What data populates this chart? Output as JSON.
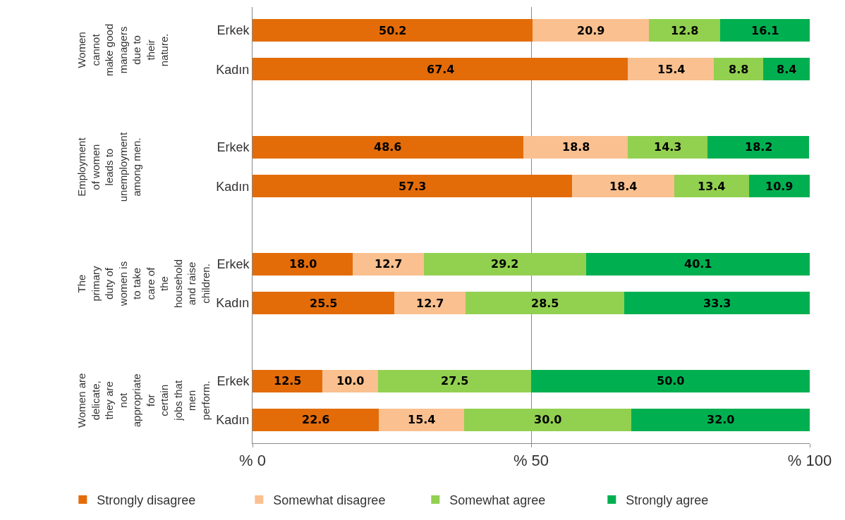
{
  "chart_data": {
    "type": "bar",
    "orientation": "horizontal",
    "stacked": true,
    "categories": [
      "Erkek",
      "Kadın",
      "Erkek",
      "Kadın",
      "Erkek",
      "Kadın",
      "Erkek",
      "Kadın"
    ],
    "series": [
      {
        "name": "Strongly disagree",
        "color": "#e36c09",
        "values": [
          50.2,
          67.4,
          48.6,
          57.3,
          18.0,
          25.5,
          12.5,
          22.6
        ],
        "value_labels": [
          "50.2",
          "67.4",
          "48.6",
          "57.3",
          "18.0",
          "25.5",
          "12.5",
          "22.6"
        ]
      },
      {
        "name": "Somewhat disagree",
        "color": "#fac08f",
        "values": [
          20.9,
          15.4,
          18.8,
          18.4,
          12.7,
          12.7,
          10.0,
          15.4
        ],
        "value_labels": [
          "20.9",
          "15.4",
          "18.8",
          "18.4",
          "12.7",
          "12.7",
          "10.0",
          "15.4"
        ]
      },
      {
        "name": "Somewhat agree",
        "color": "#92d050",
        "values": [
          12.8,
          8.8,
          14.3,
          13.4,
          29.2,
          28.5,
          27.5,
          30.0
        ],
        "value_labels": [
          "12.8",
          "8.8",
          "14.3",
          "13.4",
          "29.2",
          "28.5",
          "27.5",
          "30.0"
        ]
      },
      {
        "name": "Strongly agree",
        "color": "#00b050",
        "values": [
          16.1,
          8.4,
          18.2,
          10.9,
          40.1,
          33.3,
          50.0,
          32.0
        ],
        "value_labels": [
          "16.1",
          "8.4",
          "18.2",
          "10.9",
          "40.1",
          "33.3",
          "50.0",
          "32.0"
        ]
      }
    ],
    "annotations": [
      "Women cannot make good managers due to their nature.",
      "Employment of women leads to unemployment among men.",
      "The primary duty of women is to take care of the household and raise children.",
      "Women are delicate, they are not appropriate for certain jobs that men perform."
    ],
    "xlim": [
      0,
      100
    ],
    "xticks": [
      {
        "value": 0,
        "label": "% 0"
      },
      {
        "value": 50,
        "label": "% 50"
      },
      {
        "value": 100,
        "label": "% 100"
      }
    ],
    "grid": "x",
    "legend": "bottom"
  }
}
